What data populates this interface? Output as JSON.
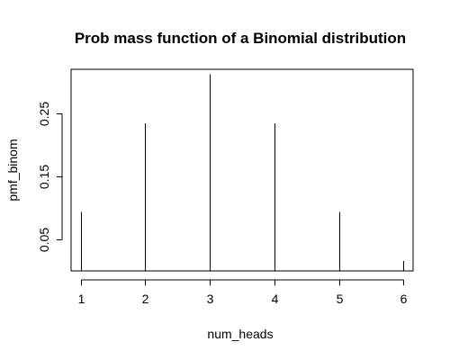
{
  "chart_data": {
    "type": "bar",
    "style": "vertical-lines",
    "title": "Prob mass function of a Binomial distribution",
    "xlabel": "num_heads",
    "ylabel": "pmf_binom",
    "x": [
      1,
      2,
      3,
      4,
      5,
      6
    ],
    "values": [
      0.09375,
      0.234375,
      0.3125,
      0.234375,
      0.09375,
      0.015625
    ],
    "xlim": [
      0.85,
      6.15
    ],
    "ylim": [
      0.0,
      0.32
    ],
    "xticks": [
      "1",
      "2",
      "3",
      "4",
      "5",
      "6"
    ],
    "yticks": [
      "0.05",
      "0.15",
      "0.25"
    ],
    "ytick_values": [
      0.05,
      0.15,
      0.25
    ],
    "grid": false,
    "box": true
  }
}
